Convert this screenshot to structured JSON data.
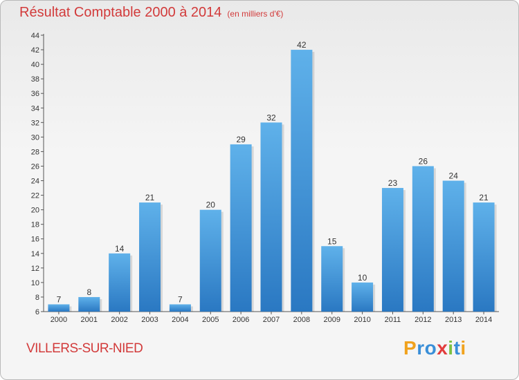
{
  "chart_data": {
    "type": "bar",
    "title": "Résultat Comptable 2000 à 2014",
    "subtitle": "(en milliers d'€)",
    "categories": [
      "2000",
      "2001",
      "2002",
      "2003",
      "2004",
      "2005",
      "2006",
      "2007",
      "2008",
      "2009",
      "2010",
      "2011",
      "2012",
      "2013",
      "2014"
    ],
    "values": [
      7,
      8,
      14,
      21,
      7,
      20,
      29,
      32,
      42,
      15,
      10,
      23,
      26,
      24,
      21
    ],
    "ylim": [
      6,
      44
    ],
    "yticks": [
      6,
      8,
      10,
      12,
      14,
      16,
      18,
      20,
      22,
      24,
      26,
      28,
      30,
      32,
      34,
      36,
      38,
      40,
      42,
      44
    ],
    "xlabel": "",
    "ylabel": "",
    "grid": false,
    "bar_color": "#3a8fd8"
  },
  "location": "VILLERS-SUR-NIED",
  "brand": {
    "letters": [
      "P",
      "r",
      "o",
      "x",
      "i",
      "t",
      "i"
    ],
    "colors": [
      "#f0a21e",
      "#3a8fd8",
      "#3a8fd8",
      "#e23c3c",
      "#7cc142",
      "#3a8fd8",
      "#f0a21e"
    ]
  }
}
